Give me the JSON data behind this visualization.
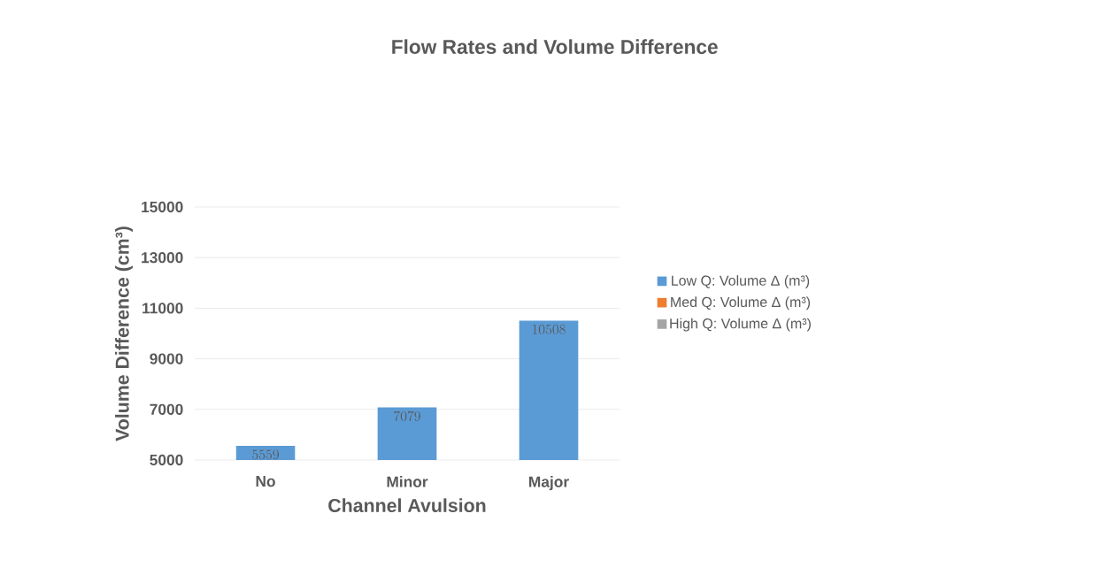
{
  "chart_data": {
    "type": "bar",
    "title": "Flow Rates and Volume Difference",
    "xlabel": "Channel Avulsion",
    "ylabel": "Volume Difference (cm³)",
    "categories": [
      "No",
      "Minor",
      "Major"
    ],
    "series": [
      {
        "name": "Low Q: Volume Δ (m³)",
        "color": "#5b9bd5",
        "values": [
          5559,
          7079,
          10508
        ]
      },
      {
        "name": "Med Q: Volume Δ (m³)",
        "color": "#ed7d31",
        "values": [
          null,
          null,
          null
        ]
      },
      {
        "name": "High Q: Volume Δ (m³)",
        "color": "#a5a5a5",
        "values": [
          null,
          null,
          null
        ]
      }
    ],
    "ylim": [
      5000,
      15000
    ],
    "yticks": [
      5000,
      7000,
      9000,
      11000,
      13000,
      15000
    ],
    "grid": "y",
    "legend": "right",
    "data_labels": true
  }
}
